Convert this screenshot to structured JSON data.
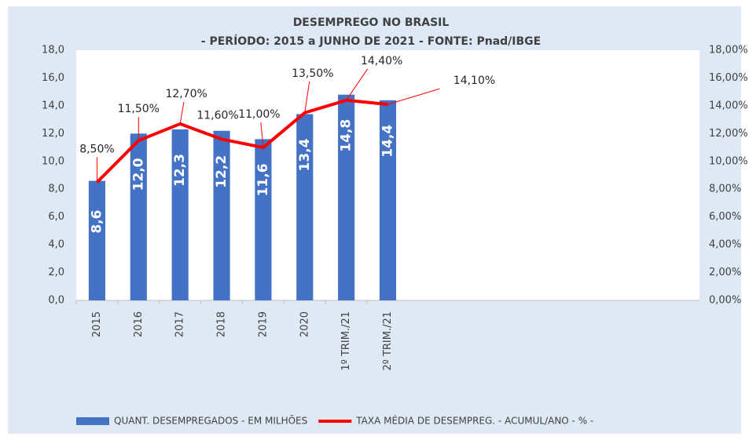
{
  "chart_data": {
    "type": "bar_line",
    "title": "DESEMPREGO NO BRASIL",
    "subtitle": "- PERÍODO: 2015 a JUNHO DE 2021 - FONTE: Pnad/IBGE",
    "categories": [
      "2015",
      "2016",
      "2017",
      "2018",
      "2019",
      "2020",
      "1º TRIM./21",
      "2º TRIM./21",
      null,
      null,
      null,
      null,
      null,
      null,
      null
    ],
    "series": [
      {
        "name": "QUANT. DESEMPREGADOS - EM MILHÕES",
        "type": "bar",
        "color": "#4472c4",
        "values": [
          8.6,
          12.0,
          12.3,
          12.2,
          11.6,
          13.4,
          14.8,
          14.4,
          null,
          null,
          null,
          null,
          null,
          null,
          null
        ],
        "value_labels": [
          "8,6",
          "12,0",
          "12,3",
          "12,2",
          "11,6",
          "13,4",
          "14,8",
          "14,4",
          null,
          null,
          null,
          null,
          null,
          null,
          null
        ]
      },
      {
        "name": "TAXA MÉDIA DE DESEMPREG. - ACUMUL/ANO - % -",
        "type": "line",
        "color": "#ff0000",
        "axis": "y2",
        "values": [
          8.5,
          11.5,
          12.7,
          11.6,
          11.0,
          13.5,
          14.4,
          14.1,
          null,
          null,
          null,
          null,
          null,
          null,
          null
        ],
        "value_labels": [
          "8,50%",
          "11,50%",
          "12,70%",
          "11,60%",
          "11,00%",
          "13,50%",
          "14,40%",
          "14,10%",
          null,
          null,
          null,
          null,
          null,
          null,
          null
        ]
      }
    ],
    "ylim": [
      0,
      18
    ],
    "yticks": [
      {
        "value": 0,
        "label": "0,0"
      },
      {
        "value": 2,
        "label": "2,0"
      },
      {
        "value": 4,
        "label": "4,0"
      },
      {
        "value": 6,
        "label": "6,0"
      },
      {
        "value": 8,
        "label": "8,0"
      },
      {
        "value": 10,
        "label": "10,0"
      },
      {
        "value": 12,
        "label": "12,0"
      },
      {
        "value": 14,
        "label": "14,0"
      },
      {
        "value": 16,
        "label": "16,0"
      },
      {
        "value": 18,
        "label": "18,0"
      }
    ],
    "y2lim": [
      0,
      18
    ],
    "y2ticks": [
      {
        "value": 0,
        "label": "0,00%"
      },
      {
        "value": 2,
        "label": "2,00%"
      },
      {
        "value": 4,
        "label": "4,00%"
      },
      {
        "value": 6,
        "label": "6,00%"
      },
      {
        "value": 8,
        "label": "8,00%"
      },
      {
        "value": 10,
        "label": "10,00%"
      },
      {
        "value": 12,
        "label": "12,00%"
      },
      {
        "value": 14,
        "label": "14,00%"
      },
      {
        "value": 16,
        "label": "16,00%"
      },
      {
        "value": 18,
        "label": "18,00%"
      }
    ],
    "legend": "bottom"
  }
}
